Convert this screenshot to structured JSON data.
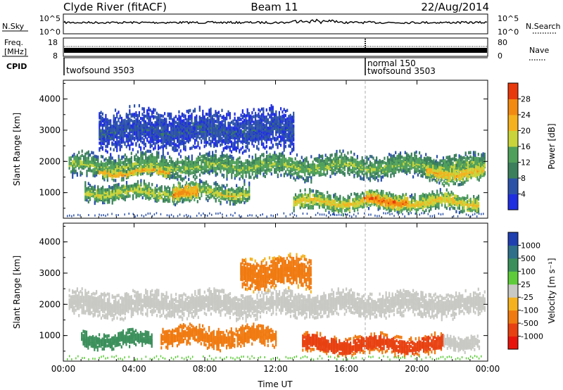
{
  "header": {
    "station": "Clyde River (fitACF)",
    "beam": "Beam 11",
    "date": "22/Aug/2014"
  },
  "status_panels": {
    "nsky": {
      "label": "N.Sky",
      "ticks": [
        "10^5",
        "10^0"
      ]
    },
    "nsearch": {
      "label": "N.Search",
      "ticks": [
        "10^5",
        "10^0"
      ]
    },
    "freq": {
      "label_lines": [
        "Freq.",
        "[MHz]"
      ],
      "ticks": [
        "18",
        "8"
      ]
    },
    "nave": {
      "label": "Nave",
      "ticks": [
        "80",
        "0"
      ]
    },
    "cpid": {
      "label": "CPID",
      "segments": [
        {
          "start_hour": 0,
          "lines": [
            "twofsound 3503"
          ]
        },
        {
          "start_hour": 17.0,
          "lines": [
            "normal 150",
            "twofsound 3503"
          ]
        }
      ]
    }
  },
  "chart_data": [
    {
      "type": "heatmap",
      "quantity": "Power",
      "xlabel": "Time UT",
      "ylabel": "Slant Range [km]",
      "xlim": [
        0,
        24
      ],
      "ylim": [
        180,
        4600
      ],
      "xticks": [
        0,
        4,
        8,
        12,
        16,
        20,
        24
      ],
      "xtick_labels": [
        "00:00",
        "04:00",
        "08:00",
        "12:00",
        "16:00",
        "20:00",
        "00:00"
      ],
      "yticks": [
        1000,
        2000,
        3000,
        4000
      ],
      "ytick_labels": [
        "1000",
        "2000",
        "3000",
        "4000"
      ],
      "colorbar": {
        "label": "Power [dB]",
        "min": 0,
        "max": 32,
        "tick_labels": [
          "4",
          "8",
          "12",
          "16",
          "20",
          "24",
          "28"
        ],
        "colors": [
          "#1f2ee0",
          "#2c52a8",
          "#3b7f5c",
          "#4fa05a",
          "#c9d43a",
          "#f5b21e",
          "#f28a12",
          "#e8390c"
        ]
      },
      "echo_bands": [
        {
          "t0": 0.3,
          "t1": 23.8,
          "r_center": 1850,
          "r_halfwidth": 300,
          "value": 16
        },
        {
          "t0": 1.2,
          "t1": 10.5,
          "r_center": 1000,
          "r_halfwidth": 230,
          "value": 18
        },
        {
          "t0": 6.2,
          "t1": 7.6,
          "r_center": 950,
          "r_halfwidth": 250,
          "value": 26
        },
        {
          "t0": 13.0,
          "t1": 23.5,
          "r_center": 700,
          "r_halfwidth": 230,
          "value": 21
        },
        {
          "t0": 17.0,
          "t1": 19.5,
          "r_center": 750,
          "r_halfwidth": 200,
          "value": 28
        },
        {
          "t0": 20.5,
          "t1": 23.8,
          "r_center": 1650,
          "r_halfwidth": 260,
          "value": 22
        },
        {
          "t0": 2.0,
          "t1": 6.0,
          "r_center": 1650,
          "r_halfwidth": 120,
          "value": 24
        },
        {
          "t0": 2.0,
          "t1": 13.0,
          "r_center": 3000,
          "r_halfwidth": 500,
          "value": 6
        }
      ]
    },
    {
      "type": "heatmap",
      "quantity": "Velocity",
      "xlabel": "Time UT",
      "ylabel": "Slant Range [km]",
      "xlim": [
        0,
        24
      ],
      "ylim": [
        180,
        4600
      ],
      "xticks": [
        0,
        4,
        8,
        12,
        16,
        20,
        24
      ],
      "xtick_labels": [
        "00:00",
        "04:00",
        "08:00",
        "12:00",
        "16:00",
        "20:00",
        "00:00"
      ],
      "yticks": [
        1000,
        2000,
        3000,
        4000
      ],
      "ytick_labels": [
        "1000",
        "2000",
        "3000",
        "4000"
      ],
      "colorbar": {
        "label": "Velocity [m s⁻¹]",
        "tick_labels": [
          "1000",
          "500",
          "100",
          "25",
          "-25",
          "-100",
          "-500",
          "-1000"
        ],
        "colors": [
          "#1f3fb0",
          "#2f6f8a",
          "#3a8f5a",
          "#5ecc3a",
          "#c8c8c4",
          "#f5b21e",
          "#f07a10",
          "#e84010",
          "#e8140c"
        ]
      },
      "echo_bands": [
        {
          "t0": 0.3,
          "t1": 23.8,
          "r_center": 2000,
          "r_halfwidth": 320,
          "value": 0
        },
        {
          "t0": 1.0,
          "t1": 5.0,
          "r_center": 850,
          "r_halfwidth": 200,
          "value": 300
        },
        {
          "t0": 5.5,
          "t1": 12.0,
          "r_center": 950,
          "r_halfwidth": 250,
          "value": -300
        },
        {
          "t0": 13.5,
          "t1": 21.5,
          "r_center": 700,
          "r_halfwidth": 230,
          "value": -700
        },
        {
          "t0": 21.5,
          "t1": 23.5,
          "r_center": 800,
          "r_halfwidth": 180,
          "value": 0
        },
        {
          "t0": 10.0,
          "t1": 14.0,
          "r_center": 3000,
          "r_halfwidth": 400,
          "value": -200
        }
      ]
    }
  ]
}
